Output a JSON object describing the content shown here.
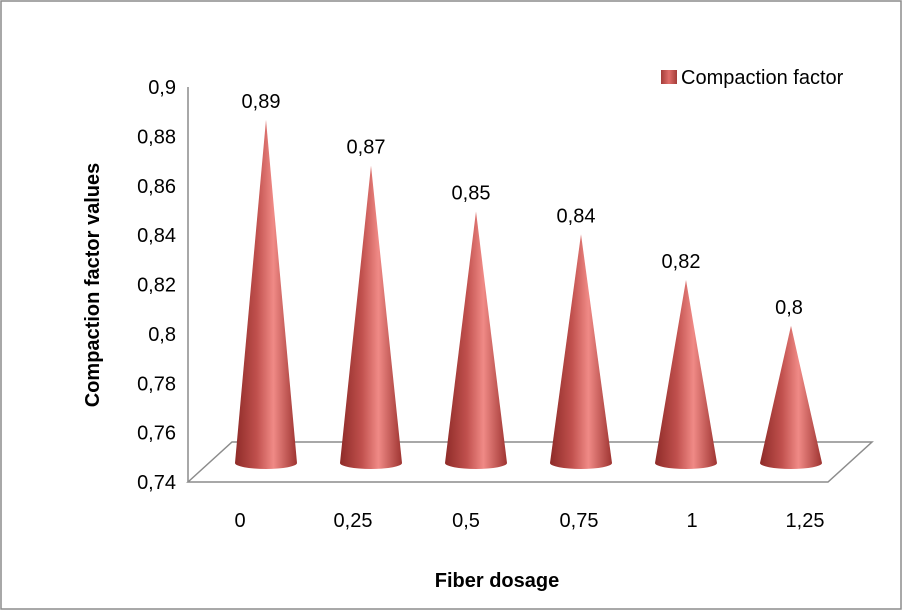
{
  "chart_data": {
    "type": "bar",
    "title": "",
    "xlabel": "Fiber dosage",
    "ylabel": "Compaction factor values",
    "categories": [
      "0",
      "0,25",
      "0,5",
      "0,75",
      "1",
      "1,25"
    ],
    "series": [
      {
        "name": "Compaction factor",
        "values": [
          0.89,
          0.87,
          0.85,
          0.84,
          0.82,
          0.8
        ],
        "value_labels": [
          "0,89",
          "0,87",
          "0,85",
          "0,84",
          "0,82",
          "0,8"
        ]
      }
    ],
    "yticks": [
      "0,74",
      "0,76",
      "0,78",
      "0,8",
      "0,82",
      "0,84",
      "0,86",
      "0,88",
      "0,9"
    ],
    "ylim": [
      0.74,
      0.9
    ],
    "mark_shape": "cone",
    "series_color": "#c0504d",
    "legend_position": "top-right",
    "grid": false
  }
}
